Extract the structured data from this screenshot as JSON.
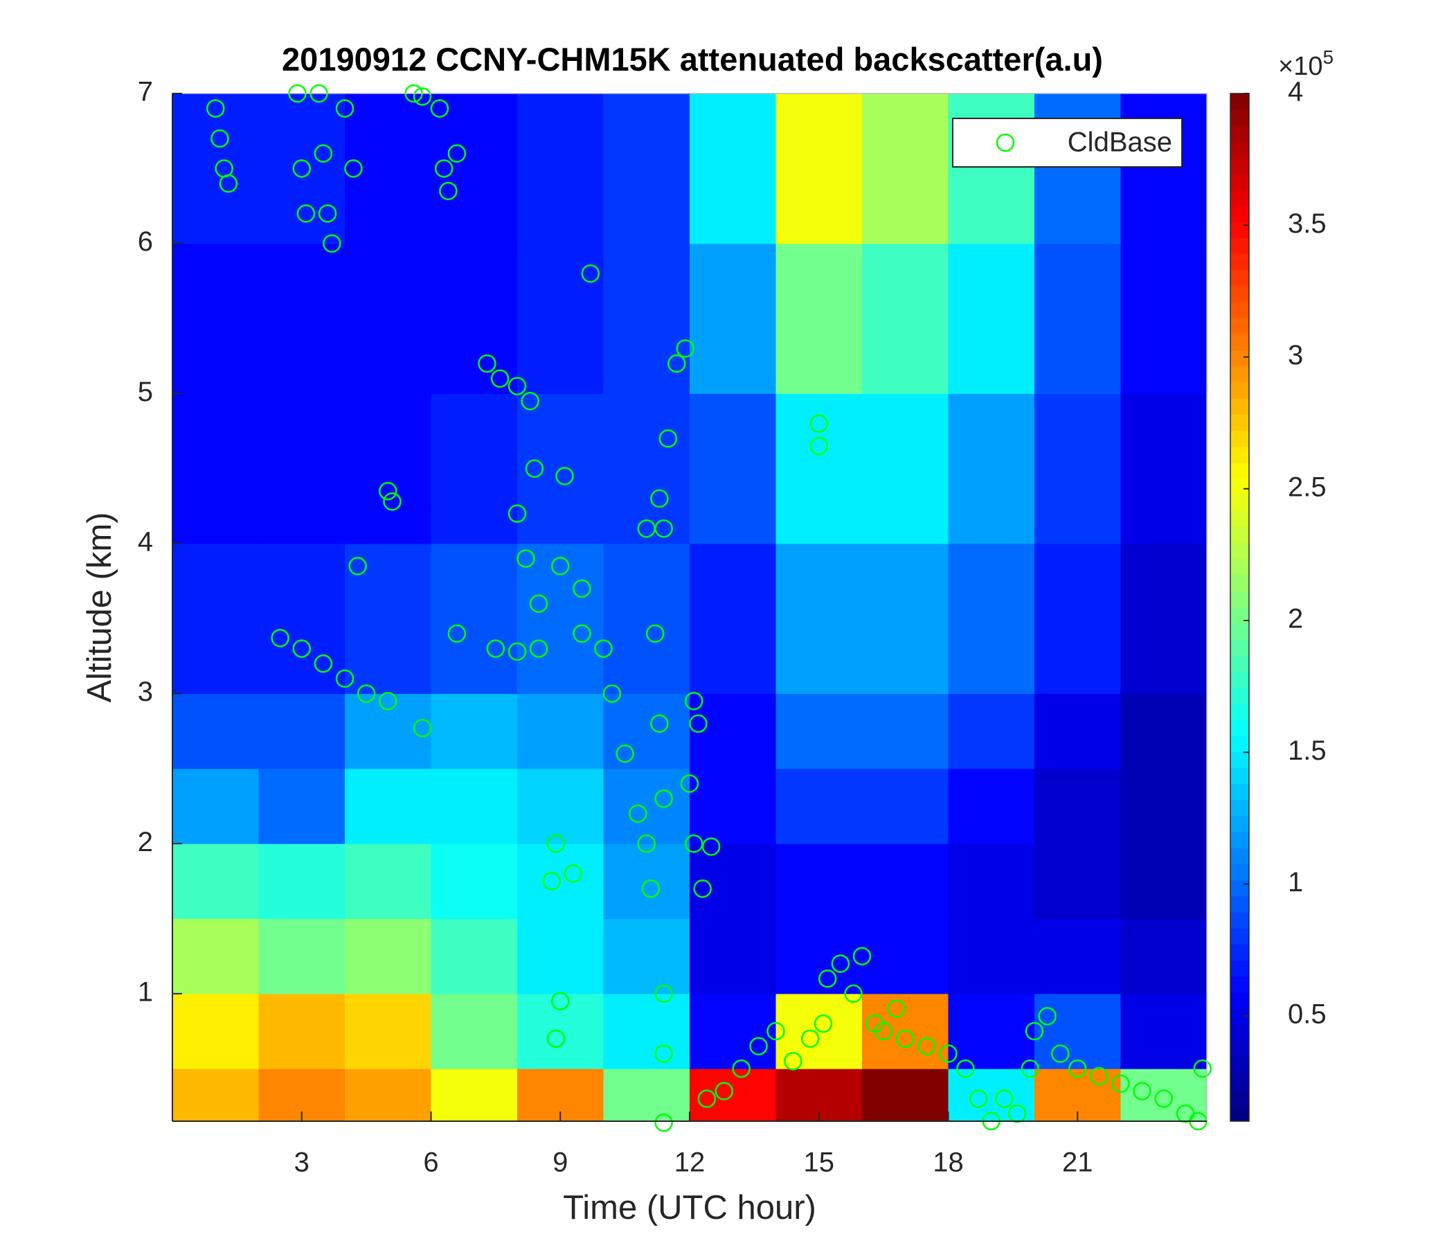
{
  "chart_data": {
    "type": "heatmap",
    "title": "20190912 CCNY-CHM15K attenuated backscatter(a.u)",
    "x_label": "Time (UTC hour)",
    "y_label": "Altitude (km)",
    "xlim": [
      0,
      24
    ],
    "xticks": [
      3,
      6,
      9,
      12,
      15,
      18,
      21
    ],
    "ylim": [
      0.15,
      7
    ],
    "yticks": [
      1,
      2,
      3,
      4,
      5,
      6,
      7
    ],
    "colormap": "jet",
    "clim": [
      10000,
      400000
    ],
    "colorbar_multiplier": {
      "base": "×10",
      "exponent": "5"
    },
    "colorbar_ticks": [
      {
        "value": 50000,
        "label": "0.5"
      },
      {
        "value": 100000,
        "label": "1"
      },
      {
        "value": 150000,
        "label": "1.5"
      },
      {
        "value": 200000,
        "label": "2"
      },
      {
        "value": 250000,
        "label": "2.5"
      },
      {
        "value": 300000,
        "label": "3"
      },
      {
        "value": 350000,
        "label": "3.5"
      },
      {
        "value": 400000,
        "label": "4"
      }
    ],
    "x_edges": [
      0,
      2,
      4,
      6,
      8,
      10,
      12,
      14,
      16,
      18,
      20,
      22,
      24
    ],
    "y_edges": [
      0.15,
      0.5,
      1,
      1.5,
      2,
      2.5,
      3,
      4,
      5,
      6,
      7
    ],
    "z": [
      [
        280000,
        300000,
        290000,
        250000,
        300000,
        200000,
        350000,
        380000,
        400000,
        150000,
        300000,
        200000
      ],
      [
        260000,
        280000,
        270000,
        200000,
        170000,
        150000,
        60000,
        250000,
        300000,
        60000,
        90000,
        50000
      ],
      [
        220000,
        200000,
        210000,
        180000,
        150000,
        130000,
        50000,
        60000,
        60000,
        50000,
        50000,
        40000
      ],
      [
        180000,
        170000,
        180000,
        160000,
        150000,
        120000,
        50000,
        60000,
        60000,
        50000,
        40000,
        30000
      ],
      [
        120000,
        100000,
        150000,
        150000,
        140000,
        110000,
        60000,
        80000,
        80000,
        60000,
        40000,
        30000
      ],
      [
        90000,
        90000,
        120000,
        130000,
        120000,
        100000,
        60000,
        100000,
        100000,
        80000,
        50000,
        30000
      ],
      [
        70000,
        70000,
        80000,
        90000,
        100000,
        90000,
        70000,
        120000,
        120000,
        100000,
        70000,
        40000
      ],
      [
        60000,
        60000,
        60000,
        70000,
        80000,
        80000,
        90000,
        150000,
        150000,
        120000,
        80000,
        50000
      ],
      [
        60000,
        60000,
        60000,
        60000,
        70000,
        80000,
        120000,
        200000,
        180000,
        150000,
        90000,
        60000
      ],
      [
        70000,
        70000,
        60000,
        60000,
        70000,
        80000,
        150000,
        250000,
        220000,
        180000,
        100000,
        60000
      ]
    ],
    "legend": "upper right",
    "overlay": {
      "type": "scatter",
      "name": "CldBase",
      "color": "#00ff00",
      "x": [
        1.0,
        1.1,
        1.2,
        1.3,
        2.9,
        3.0,
        3.1,
        3.4,
        3.5,
        3.6,
        3.7,
        4.0,
        4.2,
        5.6,
        5.8,
        6.2,
        6.3,
        6.4,
        6.6,
        9.7,
        7.3,
        7.6,
        8.0,
        8.3,
        11.7,
        11.9,
        15.0,
        15.0,
        11.5,
        5.0,
        5.1,
        4.3,
        8.0,
        8.2,
        8.4,
        9.1,
        11.3,
        11.4,
        11.0,
        2.5,
        3.0,
        3.5,
        4.0,
        4.5,
        5.0,
        5.8,
        6.6,
        7.5,
        8.0,
        8.5,
        8.5,
        9.0,
        9.5,
        9.5,
        10.0,
        10.2,
        10.5,
        10.8,
        11.0,
        11.1,
        8.9,
        8.8,
        9.3,
        9.0,
        8.9,
        11.2,
        11.3,
        11.4,
        11.4,
        11.4,
        11.4,
        12.1,
        12.2,
        12.0,
        12.1,
        12.3,
        12.5,
        12.4,
        12.8,
        13.2,
        13.6,
        14.0,
        14.4,
        14.8,
        15.1,
        15.2,
        15.5,
        15.8,
        16.0,
        16.3,
        16.5,
        16.8,
        17.0,
        17.5,
        18.0,
        18.4,
        18.7,
        19.0,
        19.3,
        19.6,
        19.9,
        20.0,
        20.3,
        20.6,
        21.0,
        21.5,
        22.0,
        22.5,
        23.0,
        23.5,
        23.8,
        23.9
      ],
      "y": [
        6.9,
        6.7,
        6.5,
        6.4,
        7.0,
        6.5,
        6.2,
        7.0,
        6.6,
        6.2,
        6.0,
        6.9,
        6.5,
        7.0,
        6.98,
        6.9,
        6.5,
        6.35,
        6.6,
        5.8,
        5.2,
        5.1,
        5.05,
        4.95,
        5.2,
        5.3,
        4.8,
        4.65,
        4.7,
        4.35,
        4.28,
        3.85,
        4.2,
        3.9,
        4.5,
        4.45,
        4.3,
        4.1,
        4.1,
        3.37,
        3.3,
        3.2,
        3.1,
        3.0,
        2.95,
        2.77,
        3.4,
        3.3,
        3.28,
        3.3,
        3.6,
        3.85,
        3.7,
        3.4,
        3.3,
        3.0,
        2.6,
        2.2,
        2.0,
        1.7,
        2.0,
        1.75,
        1.8,
        0.95,
        0.7,
        3.4,
        2.8,
        2.3,
        1.0,
        0.6,
        0.14,
        2.95,
        2.8,
        2.4,
        2.0,
        1.7,
        1.98,
        0.3,
        0.35,
        0.5,
        0.65,
        0.75,
        0.55,
        0.7,
        0.8,
        1.1,
        1.2,
        1.0,
        1.25,
        0.8,
        0.75,
        0.9,
        0.7,
        0.65,
        0.6,
        0.5,
        0.3,
        0.15,
        0.3,
        0.2,
        0.5,
        0.75,
        0.85,
        0.6,
        0.5,
        0.45,
        0.4,
        0.35,
        0.3,
        0.2,
        0.15,
        0.5
      ]
    }
  }
}
